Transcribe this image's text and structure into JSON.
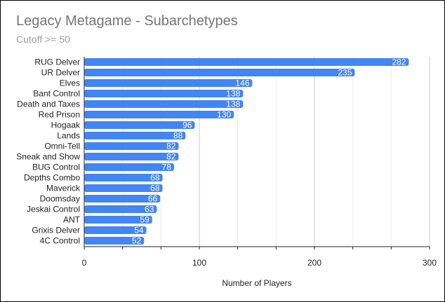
{
  "chart_data": {
    "type": "bar",
    "orientation": "horizontal",
    "title": "Legacy Metagame - Subarchetypes",
    "subtitle": "Cutoff >= 50",
    "xlabel": "Number of Players",
    "ylabel": "",
    "categories": [
      "RUG Delver",
      "UR Delver",
      "Elves",
      "Bant Control",
      "Death and Taxes",
      "Red Prison",
      "Hogaak",
      "Lands",
      "Omni-Tell",
      "Sneak and Show",
      "BUG Control",
      "Depths Combo",
      "Maverick",
      "Doomsday",
      "Jeskai Control",
      "ANT",
      "Grixis Delver",
      "4C Control"
    ],
    "values": [
      282,
      235,
      146,
      138,
      138,
      130,
      96,
      88,
      82,
      82,
      78,
      68,
      68,
      66,
      63,
      59,
      54,
      52
    ],
    "xlim": [
      0,
      300
    ],
    "xticks": [
      "0",
      "100",
      "200",
      "300"
    ],
    "grid": true,
    "legend": "none",
    "bar_color": "#4285f4"
  }
}
